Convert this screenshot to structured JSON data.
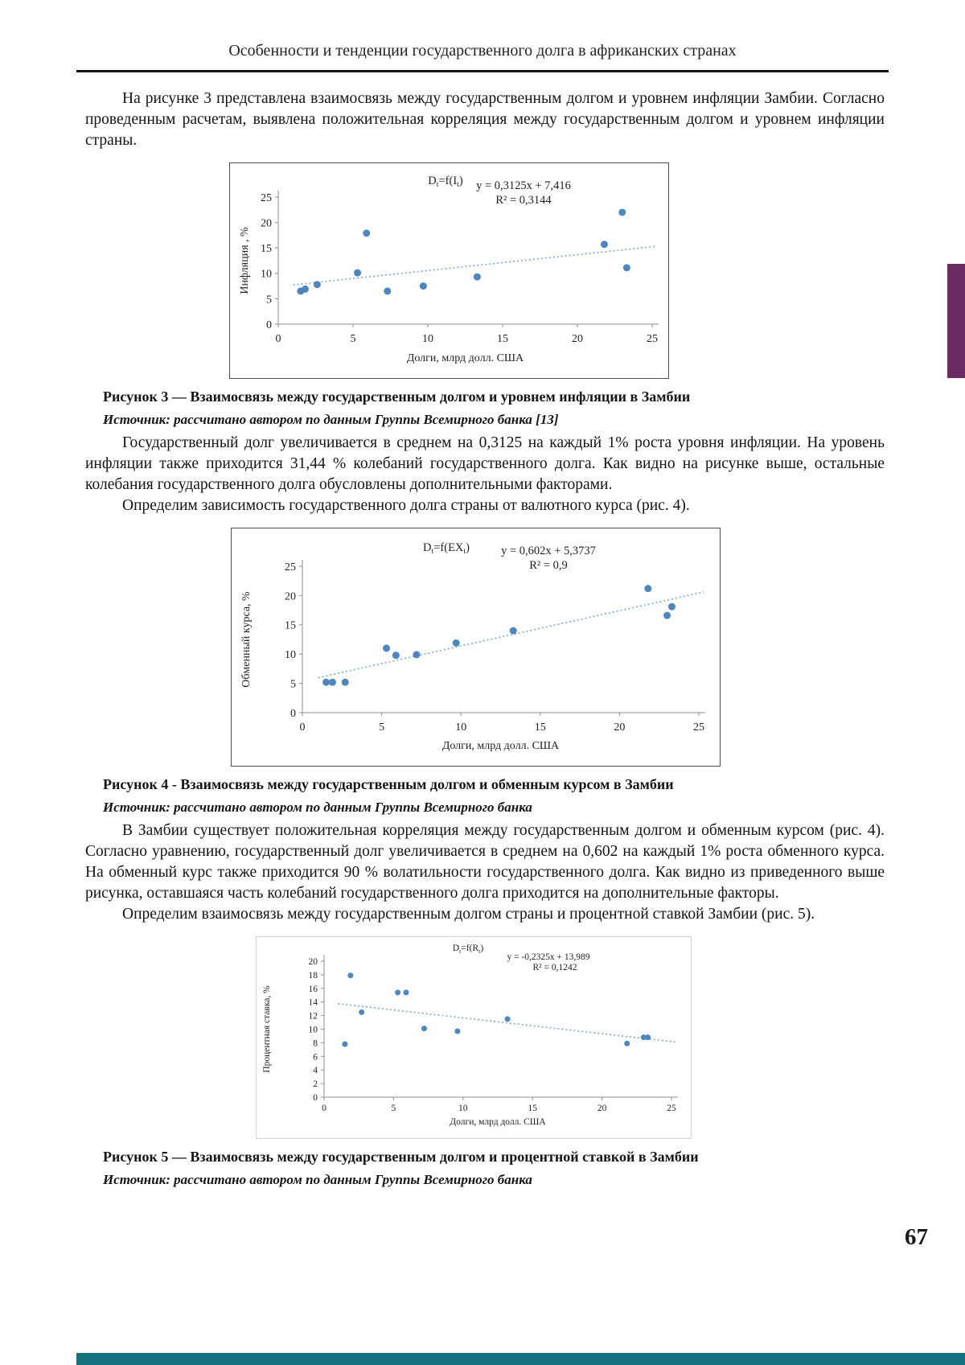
{
  "page": {
    "header": "Особенности и тенденции государственного долга в африканских странах",
    "page_number": "67",
    "colors": {
      "point_blue": "#4e86c0",
      "trend_blue": "#85abdb",
      "purple_tab": "#6c2b63",
      "teal_bar": "#16717f"
    }
  },
  "paragraphs": {
    "p1": "На рисунке 3 представлена взаимосвязь между государственным долгом и уровнем инфляции Замбии. Согласно проведенным расчетам, выявлена положительная корреляция между государственным долгом и уровнем инфляции страны.",
    "p2": "Государственный долг увеличивается в среднем на 0,3125 на каждый 1% роста уровня инфляции. На уровень инфляции также приходится 31,44 % колебаний государственного долга. Как видно на рисунке выше, остальные колебания государственного долга обусловлены дополнительными факторами.",
    "p3": "Определим зависимость государственного долга страны от валютного курса (рис. 4).",
    "p4": "В Замбии существует положительная корреляция между государственным долгом и обменным курсом (рис. 4). Согласно уравнению, государственный долг увеличивается в среднем на 0,602 на каждый 1% роста обменного курса. На обменный курс также приходится 90 % волатильности государственного долга. Как видно из приведенного выше рисунка, оставшаяся часть колебаний государственного долга приходится на дополнительные факторы.",
    "p5": "Определим взаимосвязь между государственным долгом страны и процентной ставкой Замбии (рис. 5)."
  },
  "figures": {
    "fig3": {
      "caption": "Рисунок 3 — Взаимосвязь между государственным долгом и уровнем инфляции в Замбии",
      "source": "Источник: рассчитано автором по данным Группы Всемирного банка [13]"
    },
    "fig4": {
      "caption": "Рисунок 4 - Взаимосвязь между государственным долгом и обменным курсом в Замбии",
      "source": "Источник: рассчитано автором по данным Группы Всемирного банка"
    },
    "fig5": {
      "caption": "Рисунок 5 — Взаимосвязь между государственным долгом и процентной ставкой в Замбии",
      "source": "Источник: рассчитано автором по данным Группы Всемирного банка"
    }
  },
  "chart_data": [
    {
      "type": "scatter",
      "title": "Dt=f(It)",
      "title_segments": [
        [
          "D",
          0
        ],
        [
          "t",
          1
        ],
        [
          "=f(I",
          0
        ],
        [
          "t",
          1
        ],
        [
          ")",
          0
        ]
      ],
      "equation": "y = 0,3125x + 7,416",
      "r_squared": "R² = 0,3144",
      "xlabel": "Долги,  млрд долл. США",
      "ylabel": "Инфляция , %",
      "xlim": [
        0,
        25
      ],
      "ylim": [
        0,
        25
      ],
      "xticks": [
        0,
        5,
        10,
        15,
        20,
        25
      ],
      "yticks": [
        0,
        5,
        10,
        15,
        20,
        25
      ],
      "points": [
        [
          1.5,
          6.5
        ],
        [
          1.8,
          6.9
        ],
        [
          2.6,
          7.8
        ],
        [
          5.3,
          10.1
        ],
        [
          5.9,
          17.9
        ],
        [
          7.3,
          6.5
        ],
        [
          9.7,
          7.5
        ],
        [
          13.3,
          9.3
        ],
        [
          21.8,
          15.7
        ],
        [
          23.0,
          22.0
        ],
        [
          23.3,
          11.1
        ]
      ],
      "trend": {
        "slope": 0.3125,
        "intercept": 7.416,
        "x_range": [
          1,
          25.3
        ],
        "style": "dotted"
      },
      "grid": false,
      "legend": false
    },
    {
      "type": "scatter",
      "title": "Dt=f(EXt)",
      "title_segments": [
        [
          "D",
          0
        ],
        [
          "t",
          1
        ],
        [
          "=f(EX",
          0
        ],
        [
          "t",
          1
        ],
        [
          ")",
          0
        ]
      ],
      "equation": "y = 0,602x + 5,3737",
      "r_squared": "R² = 0,9",
      "xlabel": "Долги, млрд долл. США",
      "ylabel": "Обменный курса, %",
      "xlim": [
        0,
        25
      ],
      "ylim": [
        0,
        25
      ],
      "xticks": [
        0,
        5,
        10,
        15,
        20,
        25
      ],
      "yticks": [
        0,
        5,
        10,
        15,
        20,
        25
      ],
      "points": [
        [
          1.5,
          5.2
        ],
        [
          1.9,
          5.2
        ],
        [
          2.7,
          5.2
        ],
        [
          5.3,
          11.0
        ],
        [
          5.9,
          9.8
        ],
        [
          7.2,
          9.9
        ],
        [
          9.7,
          11.9
        ],
        [
          13.3,
          14.0
        ],
        [
          21.8,
          21.2
        ],
        [
          23.0,
          16.6
        ],
        [
          23.3,
          18.1
        ]
      ],
      "trend": {
        "slope": 0.602,
        "intercept": 5.3737,
        "x_range": [
          1,
          25.3
        ],
        "style": "dotted"
      },
      "grid": false,
      "legend": false
    },
    {
      "type": "scatter",
      "title": "Dt=f(Rt)",
      "title_segments": [
        [
          "D",
          0
        ],
        [
          "t",
          1
        ],
        [
          "=f(R",
          0
        ],
        [
          "t",
          1
        ],
        [
          ")",
          0
        ]
      ],
      "equation": "y = -0,2325x + 13,989",
      "r_squared": "R² = 0,1242",
      "xlabel": "Долги, млрд долл. США",
      "ylabel": "Процентная ставка, %",
      "xlim": [
        0,
        25
      ],
      "ylim": [
        0,
        20
      ],
      "xticks": [
        0,
        5,
        10,
        15,
        20,
        25
      ],
      "yticks": [
        0,
        2,
        4,
        6,
        8,
        10,
        12,
        14,
        16,
        18,
        20
      ],
      "points": [
        [
          1.5,
          7.8
        ],
        [
          1.9,
          17.9
        ],
        [
          2.7,
          12.5
        ],
        [
          5.3,
          15.4
        ],
        [
          5.9,
          15.4
        ],
        [
          7.2,
          10.1
        ],
        [
          9.6,
          9.7
        ],
        [
          13.2,
          11.5
        ],
        [
          21.8,
          7.9
        ],
        [
          23.0,
          8.8
        ],
        [
          23.3,
          8.8
        ]
      ],
      "trend": {
        "slope": -0.2325,
        "intercept": 13.989,
        "x_range": [
          1,
          25.3
        ],
        "style": "dotted"
      },
      "grid": false,
      "legend": false
    }
  ]
}
